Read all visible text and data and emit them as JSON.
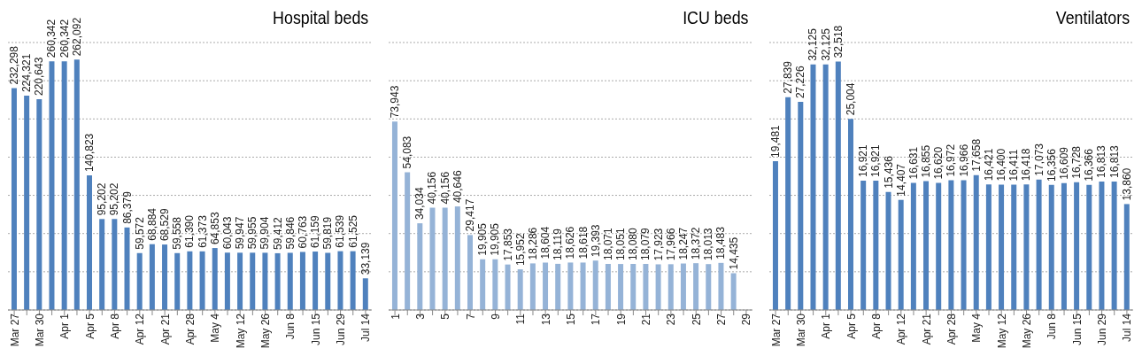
{
  "chart_data": [
    {
      "type": "bar",
      "title": "Hospital beds",
      "categories": [
        "Mar 27",
        null,
        "Mar 30",
        null,
        "Apr 1",
        null,
        "Apr 5",
        null,
        "Apr 8",
        null,
        "Apr 12",
        null,
        "Apr 21",
        null,
        "Apr 28",
        null,
        "May 4",
        null,
        "May 12",
        null,
        "May 26",
        null,
        "Jun 8",
        null,
        "Jun 15",
        null,
        "Jun 29",
        null,
        "Jul 14"
      ],
      "values": [
        232298,
        224321,
        220643,
        260342,
        260342,
        262092,
        140823,
        95202,
        95202,
        86379,
        59572,
        68884,
        68529,
        59558,
        61390,
        61373,
        64853,
        60043,
        59947,
        59955,
        59904,
        59412,
        59846,
        60763,
        61159,
        59819,
        61539,
        61525,
        33139
      ],
      "value_labels": [
        "232,298",
        "224,321",
        "220,643",
        "260,342",
        "260,342",
        "262,092",
        "140,823",
        "95,202",
        "95,202",
        "86,379",
        "59,572",
        "68,884",
        "68,529",
        "59,558",
        "61,390",
        "61,373",
        "64,853",
        "60,043",
        "59,947",
        "59,955",
        "59,904",
        "59,412",
        "59,846",
        "60,763",
        "61,159",
        "59,819",
        "61,539",
        "61,525",
        "33,139"
      ],
      "color": "#4f81bd",
      "grid": "y",
      "tick_labels": "x"
    },
    {
      "type": "bar",
      "title": "ICU beds",
      "categories": [
        "1",
        null,
        "3",
        null,
        "5",
        null,
        "7",
        null,
        "9",
        null,
        "11",
        null,
        "13",
        null,
        "15",
        null,
        "17",
        null,
        "19",
        null,
        "21",
        null,
        "23",
        null,
        "25",
        null,
        "27",
        null,
        "29"
      ],
      "values": [
        73943,
        54083,
        34034,
        40156,
        40156,
        40646,
        29417,
        19905,
        19905,
        17853,
        15952,
        18286,
        18604,
        18119,
        18626,
        18618,
        19393,
        18071,
        18051,
        18080,
        18079,
        17923,
        17966,
        18247,
        18372,
        18013,
        18483,
        14435,
        null
      ],
      "value_labels": [
        "73,943",
        "54,083",
        "34,034",
        "40,156",
        "40,156",
        "40,646",
        "29,417",
        "19,905",
        "19,905",
        "17,853",
        "15,952",
        "18,286",
        "18,604",
        "18,119",
        "18,626",
        "18,618",
        "19,393",
        "18,071",
        "18,051",
        "18,080",
        "18,079",
        "17,923",
        "17,966",
        "18,247",
        "18,372",
        "18,013",
        "18,483",
        "14,435",
        null
      ],
      "color": "#95b3d7",
      "grid": "y",
      "tick_labels": "x"
    },
    {
      "type": "bar",
      "title": "Ventilators",
      "categories": [
        "Mar 27",
        null,
        "Mar 30",
        null,
        "Apr 1",
        null,
        "Apr 5",
        null,
        "Apr 8",
        null,
        "Apr 12",
        null,
        "Apr 21",
        null,
        "Apr 28",
        null,
        "May 4",
        null,
        "May 12",
        null,
        "May 26",
        null,
        "Jun 8",
        null,
        "Jun 15",
        null,
        "Jun 29",
        null,
        "Jul 14"
      ],
      "values": [
        19481,
        27839,
        27226,
        32125,
        32125,
        32518,
        25004,
        16921,
        16921,
        15436,
        14407,
        16631,
        16855,
        16620,
        16972,
        16966,
        17658,
        16421,
        16400,
        16411,
        16418,
        17073,
        16356,
        16609,
        16728,
        16366,
        16813,
        16813,
        13860
      ],
      "value_labels": [
        "19,481",
        "27,839",
        "27,226",
        "32,125",
        "32,125",
        "32,518",
        "25,004",
        "16,921",
        "16,921",
        "15,436",
        "14,407",
        "16,631",
        "16,855",
        "16,620",
        "16,972",
        "16,966",
        "17,658",
        "16,421",
        "16,400",
        "16,411",
        "16,418",
        "17,073",
        "16,356",
        "16,609",
        "16,728",
        "16,366",
        "16,813",
        "16,813",
        "13,860"
      ],
      "color": "#4f81bd",
      "grid": "y",
      "tick_labels": "x"
    }
  ]
}
